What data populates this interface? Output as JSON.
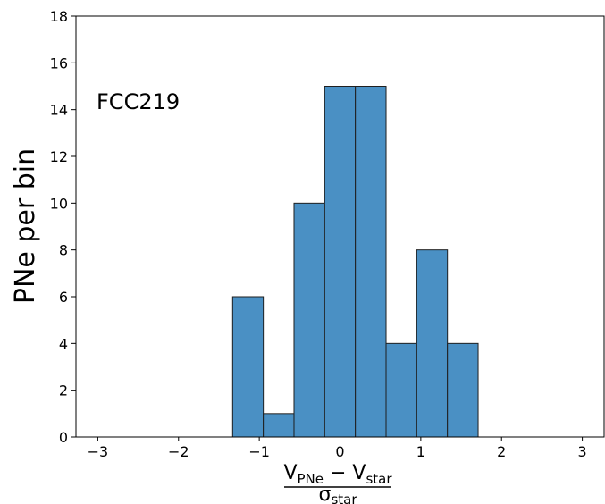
{
  "chart_data": {
    "type": "bar",
    "subtype": "histogram",
    "annotation": "FCC219",
    "ylabel": "PNe per bin",
    "xlabel": {
      "numerator_main_1": "V",
      "numerator_sub_1": "PNe",
      "numerator_op": " − ",
      "numerator_main_2": "V",
      "numerator_sub_2": "star",
      "denominator_main": "σ",
      "denominator_sub": "star"
    },
    "xlim": [
      -3.27,
      3.27
    ],
    "ylim": [
      0,
      18
    ],
    "xticks": [
      -3,
      -2,
      -1,
      0,
      1,
      2,
      3
    ],
    "xtick_labels": [
      "−3",
      "−2",
      "−1",
      "0",
      "1",
      "2",
      "3"
    ],
    "yticks": [
      0,
      2,
      4,
      6,
      8,
      10,
      12,
      14,
      16,
      18
    ],
    "ytick_labels": [
      "0",
      "2",
      "4",
      "6",
      "8",
      "10",
      "12",
      "14",
      "16",
      "18"
    ],
    "bins": [
      {
        "x0": -1.33,
        "x1": -0.95,
        "value": 6
      },
      {
        "x0": -0.95,
        "x1": -0.57,
        "value": 1
      },
      {
        "x0": -0.57,
        "x1": -0.19,
        "value": 10
      },
      {
        "x0": -0.19,
        "x1": 0.19,
        "value": 15
      },
      {
        "x0": 0.19,
        "x1": 0.57,
        "value": 15
      },
      {
        "x0": 0.57,
        "x1": 0.95,
        "value": 4
      },
      {
        "x0": 0.95,
        "x1": 1.33,
        "value": 8
      },
      {
        "x0": 1.33,
        "x1": 1.71,
        "value": 4
      }
    ],
    "bar_color": "#4a90c4",
    "edge_color": "#1f1f1f",
    "grid": false,
    "legend": "none"
  }
}
